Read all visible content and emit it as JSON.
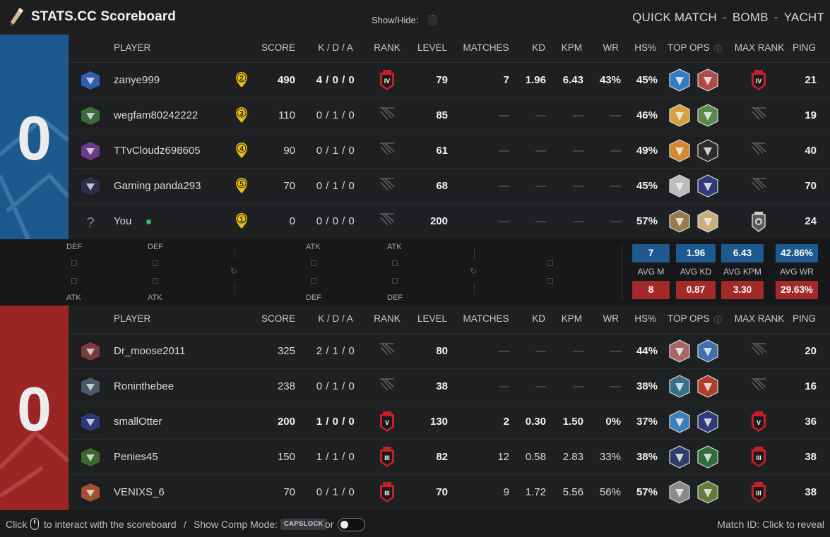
{
  "header": {
    "app_title": "STATS.CC Scoreboard",
    "show_hide_label": "Show/Hide:",
    "show_hide_button": "`",
    "mode": "QUICK MATCH",
    "objective": "BOMB",
    "map": "YACHT",
    "sep": "-"
  },
  "columns": {
    "player": "PLAYER",
    "score": "SCORE",
    "kda": "K / D / A",
    "rank": "RANK",
    "level": "LEVEL",
    "matches": "MATCHES",
    "kd": "KD",
    "kpm": "KPM",
    "wr": "WR",
    "hs": "HS%",
    "top_ops": "TOP OPS",
    "top_ops_info": "ⓘ",
    "max_rank": "MAX RANK",
    "ping": "PING"
  },
  "blue_team": {
    "score": "0",
    "color": "#1c5a8e",
    "players": [
      {
        "name": "zanye999",
        "party": "2",
        "score": "490",
        "kda": "4 / 0 / 0",
        "rank": "IV",
        "level": "79",
        "matches": "7",
        "kd": "1.96",
        "kpm": "6.43",
        "wr": "43%",
        "hs": "45%",
        "ping": "21",
        "max_rank": "IV",
        "avatar": "wing-avatar",
        "bold": true
      },
      {
        "name": "wegfam80242222",
        "party": "3",
        "score": "110",
        "kda": "0 / 1 / 0",
        "rank": "",
        "level": "85",
        "matches": "—",
        "kd": "—",
        "kpm": "—",
        "wr": "—",
        "hs": "46%",
        "ping": "19",
        "max_rank": "",
        "avatar": "soldier-avatar",
        "bold": false
      },
      {
        "name": "TTvCloudz698605",
        "party": "4",
        "score": "90",
        "kda": "0 / 1 / 0",
        "rank": "",
        "level": "61",
        "matches": "—",
        "kd": "—",
        "kpm": "—",
        "wr": "—",
        "hs": "49%",
        "ping": "40",
        "max_rank": "",
        "avatar": "stripes-avatar",
        "bold": false
      },
      {
        "name": "Gaming panda293",
        "party": "5",
        "score": "70",
        "kda": "0 / 1 / 0",
        "rank": "",
        "level": "68",
        "matches": "—",
        "kd": "—",
        "kpm": "—",
        "wr": "—",
        "hs": "45%",
        "ping": "70",
        "max_rank": "",
        "avatar": "suit-avatar",
        "bold": false
      },
      {
        "name": "You",
        "party": "1",
        "score": "0",
        "kda": "0 / 0 / 0",
        "rank": "",
        "level": "200",
        "matches": "—",
        "kd": "—",
        "kpm": "—",
        "wr": "—",
        "hs": "57%",
        "ping": "24",
        "max_rank": "champion",
        "avatar": "unknown-avatar",
        "bold": false
      }
    ]
  },
  "red_team": {
    "score": "0",
    "color": "#9b2525",
    "players": [
      {
        "name": "Dr_moose2011",
        "score": "325",
        "kda": "2 / 1 / 0",
        "rank": "",
        "level": "80",
        "matches": "—",
        "kd": "—",
        "kpm": "—",
        "wr": "—",
        "hs": "44%",
        "ping": "20",
        "max_rank": "",
        "avatar": "hammer-avatar",
        "bold": false
      },
      {
        "name": "Roninthebee",
        "score": "238",
        "kda": "0 / 1 / 0",
        "rank": "",
        "level": "38",
        "matches": "—",
        "kd": "—",
        "kpm": "—",
        "wr": "—",
        "hs": "38%",
        "ping": "16",
        "max_rank": "",
        "avatar": "ghost-avatar",
        "bold": false
      },
      {
        "name": "smallOtter",
        "score": "200",
        "kda": "1 / 0 / 0",
        "rank": "V",
        "level": "130",
        "matches": "2",
        "kd": "0.30",
        "kpm": "1.50",
        "wr": "0%",
        "hs": "37%",
        "ping": "36",
        "max_rank": "V",
        "avatar": "claw-avatar",
        "bold": true
      },
      {
        "name": "Penies45",
        "score": "150",
        "kda": "1 / 1 / 0",
        "rank": "III",
        "level": "82",
        "matches": "12",
        "kd": "0.58",
        "kpm": "2.83",
        "wr": "33%",
        "hs": "38%",
        "ping": "38",
        "max_rank": "III",
        "avatar": "grenade-avatar",
        "bold": false
      },
      {
        "name": "VENIXS_6",
        "score": "70",
        "kda": "0 / 1 / 0",
        "rank": "III",
        "level": "70",
        "matches": "9",
        "kd": "1.72",
        "kpm": "5.56",
        "wr": "56%",
        "hs": "57%",
        "ping": "38",
        "max_rank": "III",
        "avatar": "slash-avatar",
        "bold": false
      }
    ]
  },
  "rounds": {
    "blue_labels": [
      "DEF",
      "DEF",
      "ATK",
      "ATK"
    ],
    "red_labels": [
      "ATK",
      "ATK",
      "DEF",
      "DEF"
    ]
  },
  "averages": {
    "labels": [
      "AVG M",
      "AVG KD",
      "AVG KPM",
      "AVG WR"
    ],
    "blue": [
      "7",
      "1.96",
      "6.43",
      "42.86%"
    ],
    "red": [
      "8",
      "0.87",
      "3.30",
      "29.63%"
    ]
  },
  "footer": {
    "click_label": "Click",
    "interact_text": "to interact with the scoreboard",
    "slash": "/",
    "comp_mode_label": "Show Comp Mode:",
    "capslock_key": "CAPSLOCK",
    "or_label": "or",
    "match_id": "Match ID: Click to reveal"
  },
  "colors": {
    "blue": "#1c5a8e",
    "red": "#9b2525",
    "party_yellow": "#e6c01f",
    "rank_red": "#c81e2a",
    "online_green": "#2dbb6b"
  }
}
